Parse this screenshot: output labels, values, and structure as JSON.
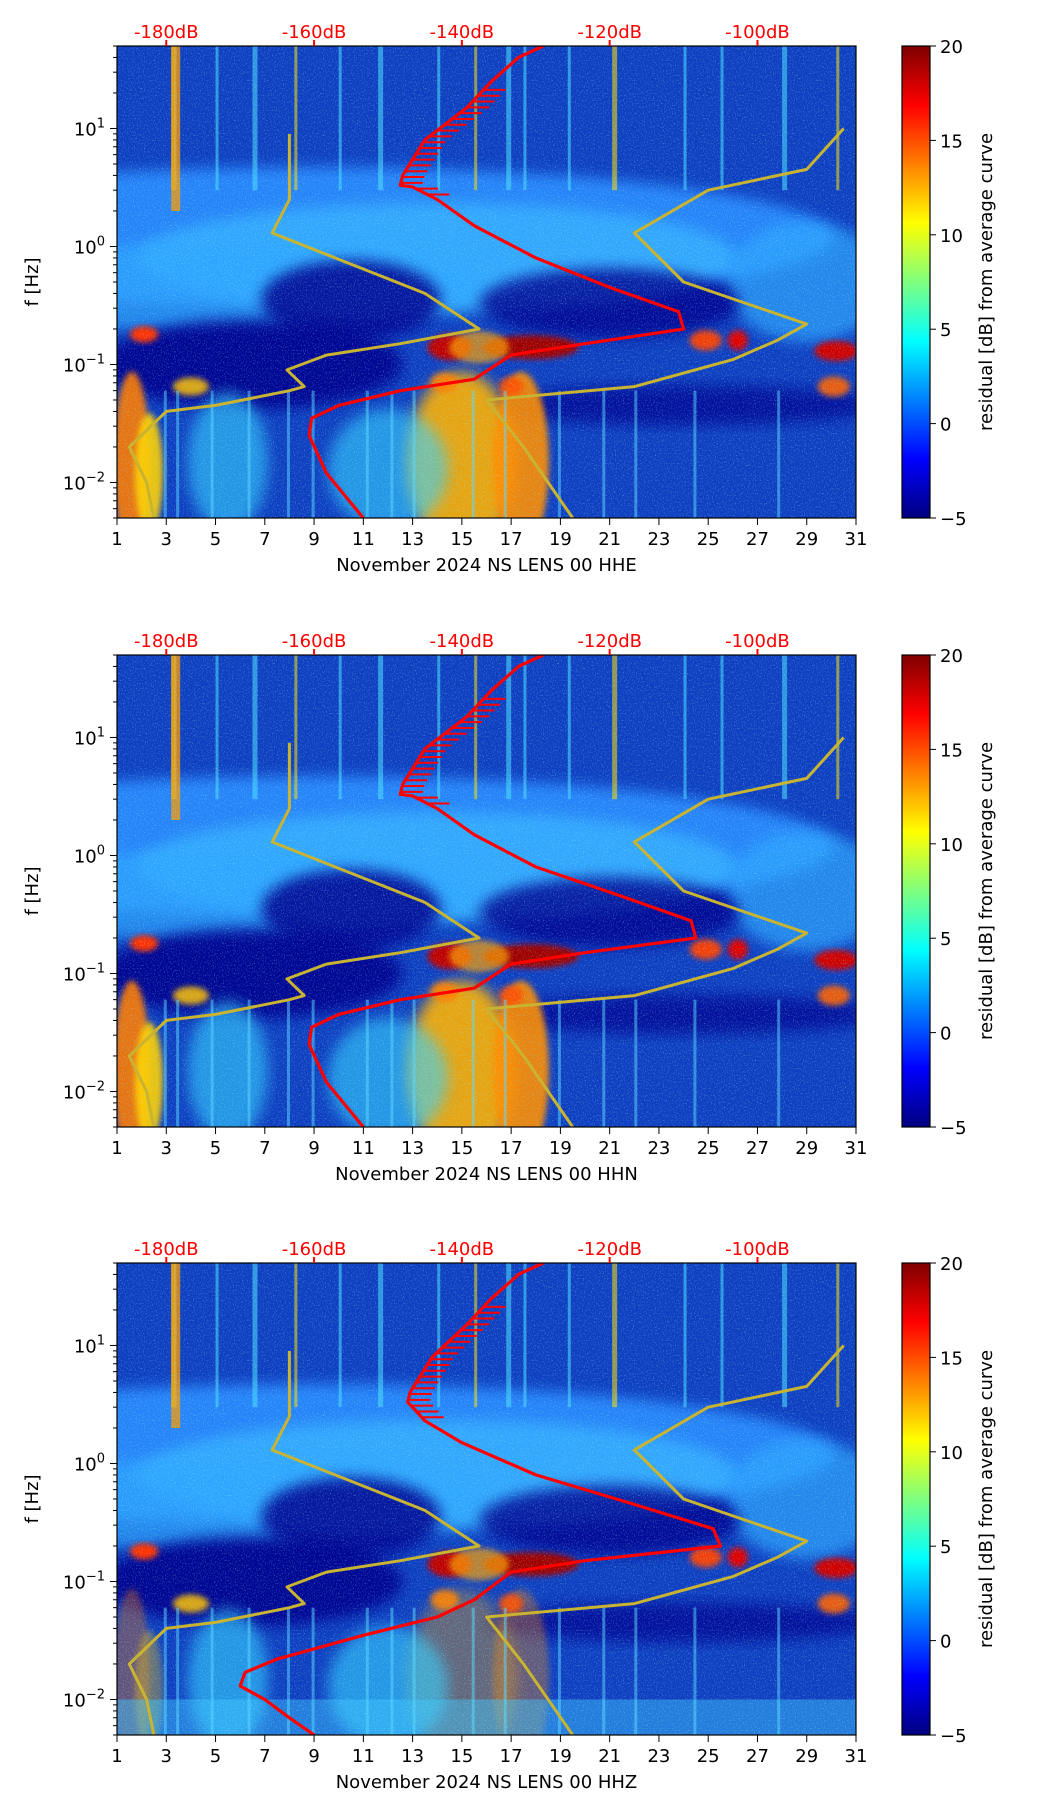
{
  "colors": {
    "noise_model_line": "#ff0000",
    "reference_line": "#c8b432",
    "db_label": "#ff0000",
    "colormap": "jet"
  },
  "chart_data": [
    {
      "type": "heatmap",
      "title": "",
      "xlabel": "November 2024 NS LENS 00 HHE",
      "ylabel": "f [Hz]",
      "xlim": [
        1,
        31
      ],
      "ylim": [
        0.005,
        50
      ],
      "yscale": "log",
      "x_ticks": [
        "1",
        "3",
        "5",
        "7",
        "9",
        "11",
        "13",
        "15",
        "17",
        "19",
        "21",
        "23",
        "25",
        "27",
        "29",
        "31"
      ],
      "y_ticks": [
        {
          "value": 0.01,
          "base": "10",
          "exp": "−2"
        },
        {
          "value": 0.1,
          "base": "10",
          "exp": "−1"
        },
        {
          "value": 1,
          "base": "10",
          "exp": "0"
        },
        {
          "value": 10,
          "base": "10",
          "exp": "1"
        }
      ],
      "top_labels": [
        "-180dB",
        "-160dB",
        "-140dB",
        "-120dB",
        "-100dB"
      ],
      "colorbar": {
        "label": "residual [dB] from average curve",
        "min": -5,
        "max": 20,
        "ticks": [
          "−5",
          "0",
          "5",
          "10",
          "15",
          "20"
        ]
      },
      "series": [
        {
          "name": "red curve",
          "x": [
            11,
            9.5,
            8.8,
            8.9,
            10,
            12.5,
            15.5,
            17,
            20,
            24,
            23.8,
            21,
            18,
            15.5,
            14,
            13,
            12.5,
            12.6,
            13.5,
            15.2,
            16.2,
            17.3,
            18.3
          ],
          "y": [
            0.005,
            0.012,
            0.025,
            0.035,
            0.045,
            0.06,
            0.075,
            0.12,
            0.15,
            0.2,
            0.28,
            0.45,
            0.8,
            1.5,
            2.5,
            3.2,
            3.3,
            4,
            8,
            15,
            25,
            40,
            50
          ]
        },
        {
          "name": "lower reference",
          "x": [
            2.5,
            2.2,
            1.5,
            3.0,
            5,
            8.0,
            8.6,
            7.9,
            9.5,
            12.5,
            15.7,
            13.5,
            7.3,
            8.0,
            8.0
          ],
          "y": [
            0.005,
            0.01,
            0.02,
            0.04,
            0.045,
            0.06,
            0.065,
            0.09,
            0.12,
            0.15,
            0.2,
            0.4,
            1.3,
            2.5,
            9.0
          ]
        },
        {
          "name": "upper reference",
          "x": [
            19.5,
            17.5,
            16,
            22,
            26,
            27.8,
            29,
            24,
            22,
            25,
            29,
            30.5
          ],
          "y": [
            0.005,
            0.02,
            0.05,
            0.065,
            0.11,
            0.16,
            0.22,
            0.5,
            1.3,
            3.0,
            4.5,
            10.0
          ]
        }
      ]
    },
    {
      "type": "heatmap",
      "title": "",
      "xlabel": "November 2024 NS LENS 00 HHN",
      "ylabel": "f [Hz]",
      "xlim": [
        1,
        31
      ],
      "ylim": [
        0.005,
        50
      ],
      "yscale": "log",
      "x_ticks": [
        "1",
        "3",
        "5",
        "7",
        "9",
        "11",
        "13",
        "15",
        "17",
        "19",
        "21",
        "23",
        "25",
        "27",
        "29",
        "31"
      ],
      "y_ticks": [
        {
          "value": 0.01,
          "base": "10",
          "exp": "−2"
        },
        {
          "value": 0.1,
          "base": "10",
          "exp": "−1"
        },
        {
          "value": 1,
          "base": "10",
          "exp": "0"
        },
        {
          "value": 10,
          "base": "10",
          "exp": "1"
        }
      ],
      "top_labels": [
        "-180dB",
        "-160dB",
        "-140dB",
        "-120dB",
        "-100dB"
      ],
      "colorbar": {
        "label": "residual [dB] from average curve",
        "min": -5,
        "max": 20,
        "ticks": [
          "−5",
          "0",
          "5",
          "10",
          "15",
          "20"
        ]
      },
      "series": [
        {
          "name": "red curve",
          "x": [
            11,
            9.5,
            8.8,
            8.9,
            10,
            12.5,
            15.5,
            17,
            20,
            24.5,
            24.3,
            21.5,
            18,
            15.5,
            14,
            13,
            12.5,
            12.6,
            13.5,
            15.2,
            16.2,
            17.3,
            18.3
          ],
          "y": [
            0.005,
            0.012,
            0.025,
            0.035,
            0.045,
            0.06,
            0.075,
            0.12,
            0.15,
            0.2,
            0.28,
            0.45,
            0.8,
            1.5,
            2.5,
            3.2,
            3.3,
            4,
            8,
            15,
            25,
            40,
            50
          ]
        },
        {
          "name": "lower reference",
          "x": [
            2.5,
            2.2,
            1.5,
            3.0,
            5,
            8.0,
            8.6,
            7.9,
            9.5,
            12.5,
            15.7,
            13.5,
            7.3,
            8.0,
            8.0
          ],
          "y": [
            0.005,
            0.01,
            0.02,
            0.04,
            0.045,
            0.06,
            0.065,
            0.09,
            0.12,
            0.15,
            0.2,
            0.4,
            1.3,
            2.5,
            9.0
          ]
        },
        {
          "name": "upper reference",
          "x": [
            19.5,
            17.5,
            16,
            22,
            26,
            27.8,
            29,
            24,
            22,
            25,
            29,
            30.5
          ],
          "y": [
            0.005,
            0.02,
            0.05,
            0.065,
            0.11,
            0.16,
            0.22,
            0.5,
            1.3,
            3.0,
            4.5,
            10.0
          ]
        }
      ]
    },
    {
      "type": "heatmap",
      "title": "",
      "xlabel": "November 2024 NS LENS 00 HHZ",
      "ylabel": "f [Hz]",
      "xlim": [
        1,
        31
      ],
      "ylim": [
        0.005,
        50
      ],
      "yscale": "log",
      "x_ticks": [
        "1",
        "3",
        "5",
        "7",
        "9",
        "11",
        "13",
        "15",
        "17",
        "19",
        "21",
        "23",
        "25",
        "27",
        "29",
        "31"
      ],
      "y_ticks": [
        {
          "value": 0.01,
          "base": "10",
          "exp": "−2"
        },
        {
          "value": 0.1,
          "base": "10",
          "exp": "−1"
        },
        {
          "value": 1,
          "base": "10",
          "exp": "0"
        },
        {
          "value": 10,
          "base": "10",
          "exp": "1"
        }
      ],
      "top_labels": [
        "-180dB",
        "-160dB",
        "-140dB",
        "-120dB",
        "-100dB"
      ],
      "colorbar": {
        "label": "residual [dB] from average curve",
        "min": -5,
        "max": 20,
        "ticks": [
          "−5",
          "0",
          "5",
          "10",
          "15",
          "20"
        ]
      },
      "series": [
        {
          "name": "red curve",
          "x": [
            9,
            8,
            7,
            6,
            6.2,
            7.5,
            11,
            14,
            15.5,
            17,
            20,
            25.5,
            25.2,
            22,
            18,
            15,
            13.5,
            13,
            12.8,
            12.9,
            13.8,
            15.2,
            16.2,
            17.3,
            18.3
          ],
          "y": [
            0.005,
            0.007,
            0.01,
            0.013,
            0.017,
            0.022,
            0.035,
            0.05,
            0.07,
            0.12,
            0.15,
            0.2,
            0.28,
            0.45,
            0.8,
            1.5,
            2.3,
            3.0,
            3.3,
            4,
            8,
            15,
            25,
            40,
            50
          ]
        },
        {
          "name": "lower reference",
          "x": [
            2.5,
            2.2,
            1.5,
            3.0,
            5,
            8.0,
            8.6,
            7.9,
            9.5,
            12.5,
            15.7,
            13.5,
            7.3,
            8.0,
            8.0
          ],
          "y": [
            0.005,
            0.01,
            0.02,
            0.04,
            0.045,
            0.06,
            0.065,
            0.09,
            0.12,
            0.15,
            0.2,
            0.4,
            1.3,
            2.5,
            9.0
          ]
        },
        {
          "name": "upper reference",
          "x": [
            19.5,
            17.5,
            16,
            22,
            26,
            27.8,
            29,
            24,
            22,
            25,
            29,
            30.5
          ],
          "y": [
            0.005,
            0.02,
            0.05,
            0.065,
            0.11,
            0.16,
            0.22,
            0.5,
            1.3,
            3.0,
            4.5,
            10.0
          ]
        }
      ]
    }
  ]
}
